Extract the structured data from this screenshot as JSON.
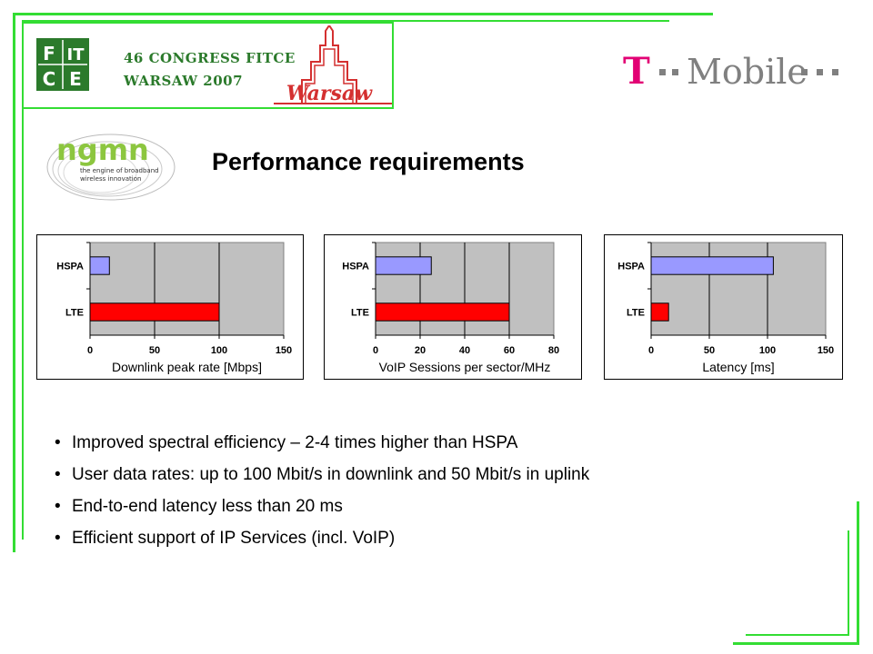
{
  "header": {
    "congress_line1": "46 CONGRESS FITCE",
    "congress_line2": "WARSAW 2007",
    "fitce_letters": [
      "F",
      "IT",
      "C",
      "E"
    ],
    "warsaw_label": "Warsaw",
    "tmobile_t": "T",
    "tmobile_text": "Mobile",
    "ngmn_text": "ngmn",
    "ngmn_tagline_1": "the engine of broadband",
    "ngmn_tagline_2": "wireless innovation"
  },
  "title": "Performance requirements",
  "colors": {
    "hspa": "#9999ff",
    "lte": "#ff0000",
    "plot_bg": "#c0c0c0",
    "frame": "#33dd33",
    "tmobile_magenta": "#e20074",
    "fitce_green": "#2b7a2b"
  },
  "chart_data": [
    {
      "type": "bar",
      "orientation": "horizontal",
      "categories": [
        "HSPA",
        "LTE"
      ],
      "values": [
        15,
        100
      ],
      "xlabel": "Downlink peak rate [Mbps]",
      "xlim": [
        0,
        150
      ],
      "xticks": [
        0,
        50,
        100,
        150
      ],
      "grid": true
    },
    {
      "type": "bar",
      "orientation": "horizontal",
      "categories": [
        "HSPA",
        "LTE"
      ],
      "values": [
        25,
        60
      ],
      "xlabel": "VoIP Sessions per sector/MHz",
      "xlim": [
        0,
        80
      ],
      "xticks": [
        0,
        20,
        40,
        60,
        80
      ],
      "grid": true
    },
    {
      "type": "bar",
      "orientation": "horizontal",
      "categories": [
        "HSPA",
        "LTE"
      ],
      "values": [
        105,
        15
      ],
      "xlabel": "Latency [ms]",
      "xlim": [
        0,
        150
      ],
      "xticks": [
        0,
        50,
        100,
        150
      ],
      "grid": true
    }
  ],
  "bullets": [
    "Improved spectral efficiency – 2-4 times higher than HSPA",
    "User data rates: up to 100 Mbit/s in downlink and 50 Mbit/s in uplink",
    "End-to-end latency less than 20 ms",
    "Efficient support of IP Services (incl. VoIP)"
  ],
  "bullet_symbol": "•"
}
